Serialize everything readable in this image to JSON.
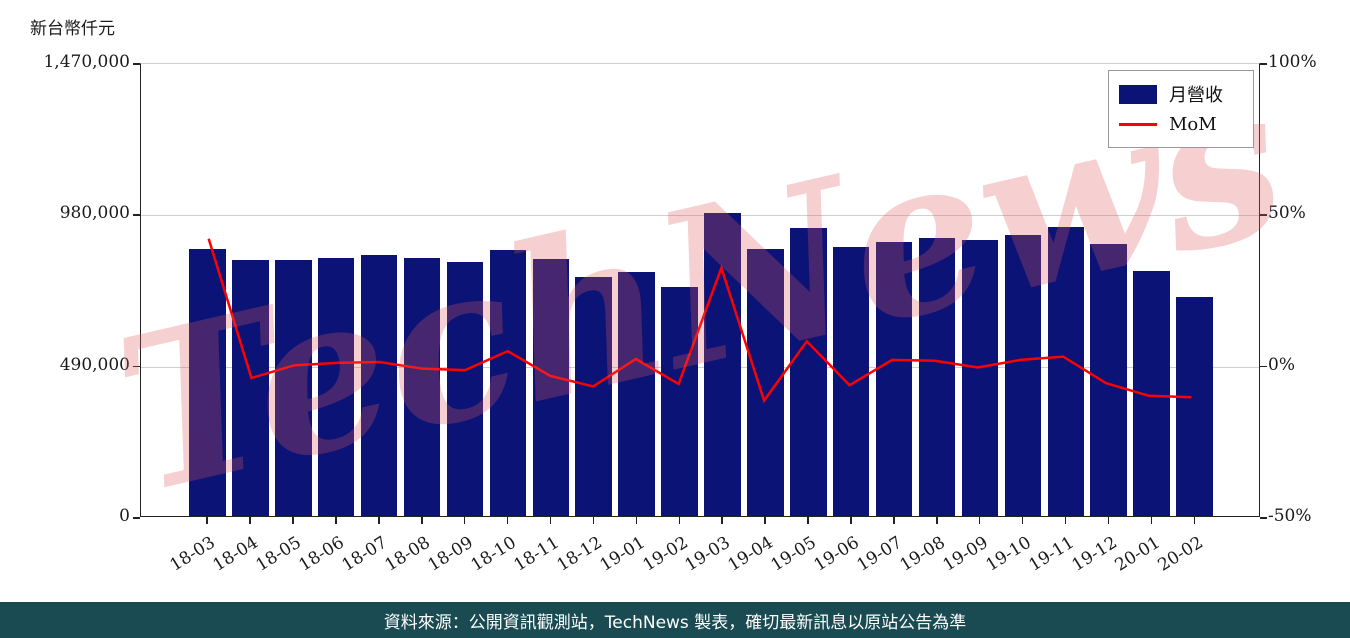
{
  "page": {
    "y_axis_title": "新台幣仟元",
    "watermark": "TechNews",
    "footer": "資料來源：公開資訊觀測站，TechNews 製表，確切最新訊息以原站公告為準",
    "colors": {
      "bar": "#0b1377",
      "line": "#ff0000",
      "footer_bg": "#1a4a52",
      "watermark": "#e05a5a",
      "grid": "#cfcfcf"
    }
  },
  "chart_data": {
    "type": "bar",
    "title": "",
    "xlabel": "",
    "ylabel": "新台幣仟元",
    "categories": [
      "18-03",
      "18-04",
      "18-05",
      "18-06",
      "18-07",
      "18-08",
      "18-09",
      "18-10",
      "18-11",
      "18-12",
      "19-01",
      "19-02",
      "19-03",
      "19-04",
      "19-05",
      "19-06",
      "19-07",
      "19-08",
      "19-09",
      "19-10",
      "19-11",
      "19-12",
      "20-01",
      "20-02"
    ],
    "series": [
      {
        "name": "月營收",
        "type": "bar",
        "axis": "left",
        "color": "#0b1377",
        "values": [
          865000,
          829000,
          829000,
          836000,
          845000,
          836000,
          823000,
          862000,
          832000,
          774000,
          790000,
          741000,
          980000,
          865000,
          934000,
          872000,
          888000,
          901000,
          895000,
          911000,
          937000,
          882000,
          793000,
          709000
        ]
      },
      {
        "name": "MoM",
        "type": "line",
        "axis": "right",
        "color": "#ff0000",
        "values_pct": [
          42,
          -4.2,
          0,
          0.8,
          1.1,
          -1.1,
          -1.6,
          4.7,
          -3.5,
          -7.0,
          2.1,
          -6.2,
          32.3,
          -11.7,
          8.0,
          -6.6,
          1.8,
          1.5,
          -0.7,
          1.8,
          2.9,
          -5.9,
          -10.1,
          -10.6
        ]
      }
    ],
    "left_axis": {
      "range": [
        0,
        1470000
      ],
      "ticks": [
        0,
        490000,
        980000,
        1470000
      ],
      "tick_labels": [
        "0",
        "490,000",
        "980,000",
        "1,470,000"
      ]
    },
    "right_axis": {
      "range": [
        -50,
        100
      ],
      "ticks": [
        -50,
        0,
        50,
        100
      ],
      "tick_labels": [
        "-50%",
        "0%",
        "50%",
        "100%"
      ]
    },
    "legend": {
      "position": "top-right",
      "entries": [
        "月營收",
        "MoM"
      ]
    },
    "grid": "horizontal"
  }
}
